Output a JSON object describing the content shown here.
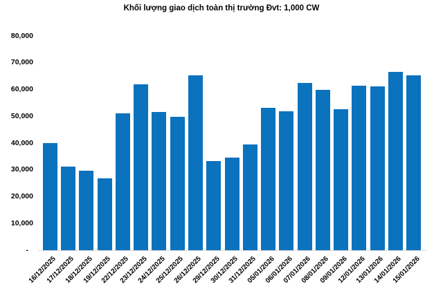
{
  "page": {
    "background": "#FFFFFF"
  },
  "colors": {
    "bar": "#0B72BE",
    "axis_line": "#D9D9D9",
    "text": "#000000"
  },
  "chart_data": {
    "type": "bar",
    "title": "Khối lượng giao dịch toàn thị trường Đvt: 1,000 CW",
    "categories": [
      "16/12/2025",
      "17/12/2025",
      "18/12/2025",
      "19/12/2025",
      "22/12/2025",
      "23/12/2025",
      "24/12/2025",
      "25/12/2025",
      "26/12/2025",
      "29/12/2025",
      "30/12/2025",
      "31/12/2025",
      "05/01/2026",
      "06/01/2026",
      "07/01/2026",
      "08/01/2026",
      "09/01/2026",
      "12/01/2026",
      "13/01/2026",
      "14/01/2026",
      "15/01/2026"
    ],
    "values": [
      40000,
      31100,
      29700,
      26900,
      51200,
      62000,
      51700,
      49900,
      65300,
      33400,
      34600,
      39600,
      53100,
      51800,
      62400,
      59900,
      52700,
      61300,
      61100,
      66700,
      65400
    ],
    "xlabel": "",
    "ylabel": "",
    "ylim": [
      0,
      80000
    ],
    "ytick_interval": 10000,
    "ytick_labels": [
      "-",
      "10,000",
      "20,000",
      "30,000",
      "40,000",
      "50,000",
      "60,000",
      "70,000",
      "80,000"
    ],
    "grid": false,
    "legend": "none",
    "x_tick_rotation_deg": 45
  }
}
